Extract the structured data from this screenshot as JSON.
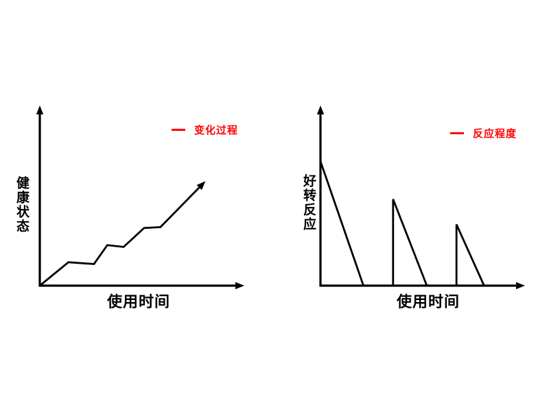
{
  "page": {
    "background": "#FFFFFF"
  },
  "chart_data": [
    {
      "type": "line",
      "title": "",
      "xlabel": "使用时间",
      "ylabel": "健康状态",
      "legend_label": "变化过程",
      "legend_color": "#FF0000",
      "legend_position": "top-right",
      "line_color": "#000000",
      "axis_color": "#000000",
      "axes": {
        "ticks": "none",
        "arrows": true,
        "grid": false,
        "xlim": [
          0,
          100
        ],
        "ylim": [
          0,
          100
        ]
      },
      "series": [
        {
          "name": "变化过程",
          "arrow_end": true,
          "points": [
            [
              0,
              0
            ],
            [
              14,
              13
            ],
            [
              26.5,
              12
            ],
            [
              33,
              22.5
            ],
            [
              41,
              21.5
            ],
            [
              51,
              32
            ],
            [
              59,
              32.5
            ],
            [
              81,
              58
            ]
          ]
        }
      ]
    },
    {
      "type": "line",
      "title": "",
      "xlabel": "使用时间",
      "ylabel": "好转反应",
      "legend_label": "反应程度",
      "legend_color": "#FF0000",
      "legend_position": "top-right",
      "line_color": "#000000",
      "axis_color": "#000000",
      "axes": {
        "ticks": "none",
        "arrows": true,
        "grid": false,
        "xlim": [
          0,
          100
        ],
        "ylim": [
          0,
          100
        ]
      },
      "series": [
        {
          "name": "反应程度",
          "segment": 1,
          "arrow_end": false,
          "points": [
            [
              0,
              69
            ],
            [
              21,
              0
            ]
          ]
        },
        {
          "name": "反应程度",
          "segment": 2,
          "arrow_end": false,
          "points": [
            [
              35.5,
              0
            ],
            [
              35.5,
              48
            ],
            [
              52,
              0
            ]
          ]
        },
        {
          "name": "反应程度",
          "segment": 3,
          "arrow_end": false,
          "points": [
            [
              66.5,
              0
            ],
            [
              66.5,
              34
            ],
            [
              80,
              0
            ]
          ]
        }
      ]
    }
  ]
}
